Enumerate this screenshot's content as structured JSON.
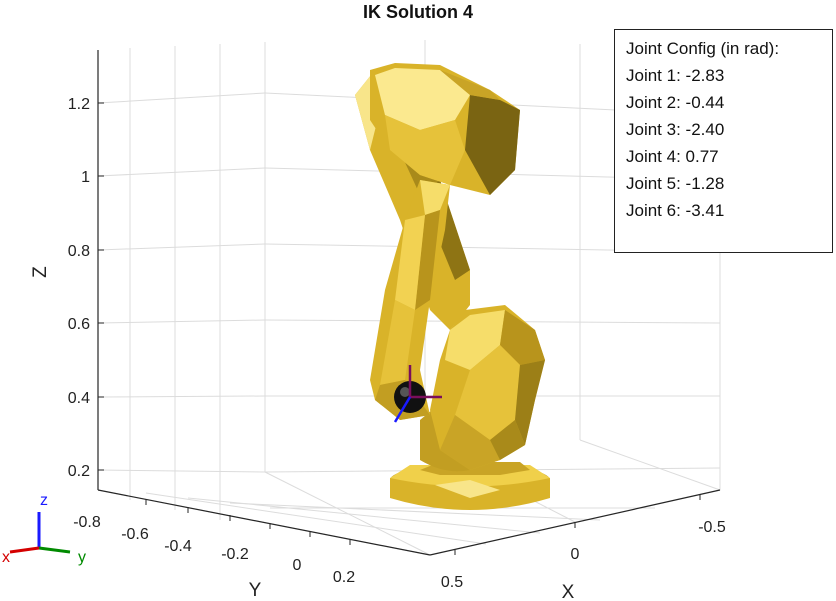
{
  "title": "IK Solution 4",
  "axes": {
    "z_label": "Z",
    "y_label": "Y",
    "x_label": "X",
    "z_ticks": [
      "1.2",
      "1",
      "0.8",
      "0.6",
      "0.4",
      "0.2"
    ],
    "y_ticks": [
      "-0.8",
      "-0.6",
      "-0.4",
      "-0.2",
      "0",
      "0.2"
    ],
    "x_ticks": [
      "-0.5",
      "0",
      "0.5"
    ]
  },
  "joint_config": {
    "heading": "Joint Config (in rad):",
    "joints": [
      "Joint 1: -2.83",
      "Joint 2: -0.44",
      "Joint 3: -2.40",
      "Joint 4: 0.77",
      "Joint 5: -1.28",
      "Joint 6: -3.41"
    ]
  },
  "orientation_triad": {
    "x": "x",
    "y": "y",
    "z": "z"
  },
  "colors": {
    "robot_light": "#f6dd6a",
    "robot_mid": "#d9b329",
    "robot_dark": "#8e7414",
    "grid": "#dcdcdc",
    "axis": "#262626",
    "triad_x": "#d40000",
    "triad_y": "#008a00",
    "triad_z": "#1a1aff"
  }
}
